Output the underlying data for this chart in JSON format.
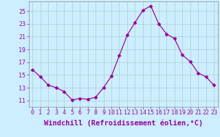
{
  "x": [
    0,
    1,
    2,
    3,
    4,
    5,
    6,
    7,
    8,
    9,
    10,
    11,
    12,
    13,
    14,
    15,
    16,
    17,
    18,
    19,
    20,
    21,
    22,
    23
  ],
  "y": [
    15.8,
    14.7,
    13.4,
    13.0,
    12.4,
    11.1,
    11.3,
    11.2,
    11.5,
    13.0,
    14.8,
    18.0,
    21.2,
    23.2,
    25.1,
    25.8,
    23.0,
    21.4,
    20.7,
    18.1,
    17.1,
    15.3,
    14.7,
    13.4
  ],
  "line_color": "#990099",
  "marker": "D",
  "marker_size": 2.5,
  "bg_color": "#cceeff",
  "grid_color": "#aacccc",
  "xlabel": "Windchill (Refroidissement éolien,°C)",
  "xlim": [
    -0.5,
    23.5
  ],
  "ylim": [
    10.0,
    26.5
  ],
  "yticks": [
    11,
    13,
    15,
    17,
    19,
    21,
    23,
    25
  ],
  "xticks": [
    0,
    1,
    2,
    3,
    4,
    5,
    6,
    7,
    8,
    9,
    10,
    11,
    12,
    13,
    14,
    15,
    16,
    17,
    18,
    19,
    20,
    21,
    22,
    23
  ],
  "xlabel_fontsize": 7.5,
  "tick_fontsize": 6.0
}
